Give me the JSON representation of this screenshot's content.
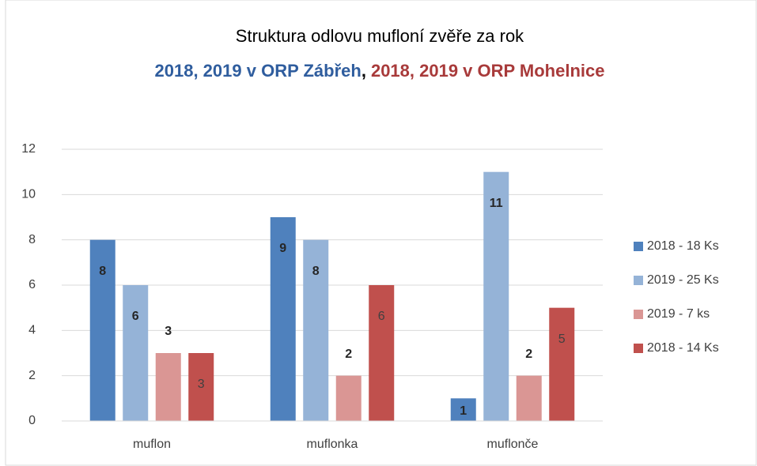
{
  "chart_data": {
    "type": "bar",
    "title": "Struktura odlovu mufloní zvěře za rok",
    "subtitle": [
      {
        "text": "2018, 2019 v ORP Zábřeh",
        "color": "#2f5d9e"
      },
      {
        "text": ",",
        "color": "#000000"
      },
      {
        "text": "2018, 2019 v ORP Mohelnice",
        "color": "#a83a3a"
      }
    ],
    "categories": [
      "muflon",
      "muflonka",
      "muflonče"
    ],
    "series": [
      {
        "name": "2018 - 18 Ks",
        "color": "#4f81bd",
        "values": [
          8,
          9,
          1
        ]
      },
      {
        "name": "2019 - 25 Ks",
        "color": "#95b3d7",
        "values": [
          6,
          8,
          11
        ]
      },
      {
        "name": "2019 - 7 ks",
        "color": "#da9694",
        "values": [
          3,
          2,
          2
        ]
      },
      {
        "name": "2018 - 14 Ks",
        "color": "#c0504d",
        "values": [
          3,
          6,
          5
        ]
      }
    ],
    "ylim": [
      0,
      12
    ],
    "yticks": [
      0,
      2,
      4,
      6,
      8,
      10,
      12
    ],
    "grid": true,
    "legend": "right"
  }
}
